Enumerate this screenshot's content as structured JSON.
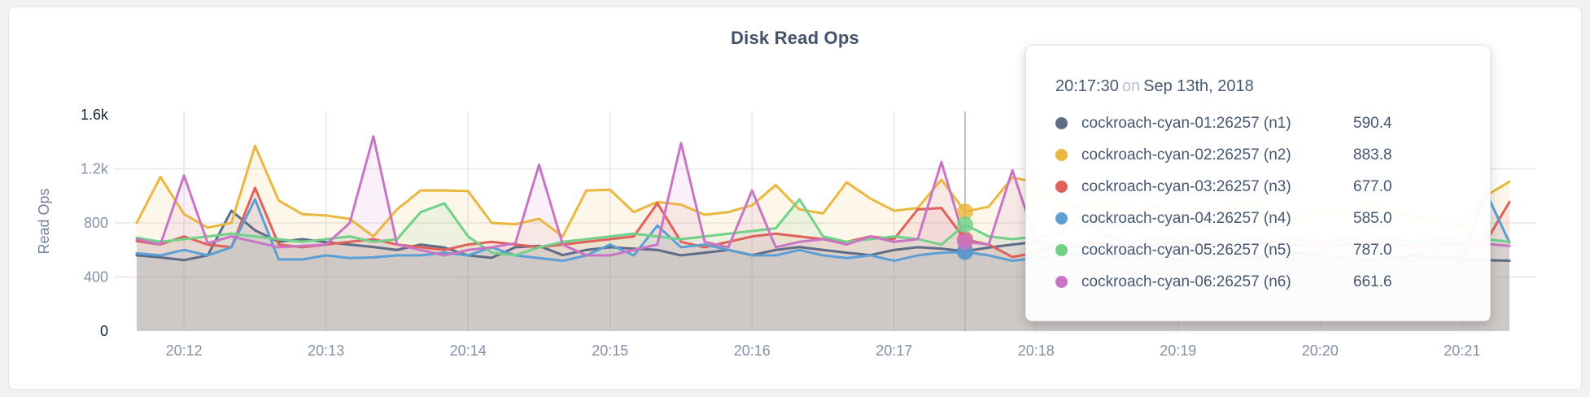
{
  "window": {
    "background_color": "#f1f1f1",
    "card_background": "#ffffff"
  },
  "chart_data": {
    "type": "area",
    "title": "Disk Read Ops",
    "ylabel": "Read Ops",
    "xlabel": "",
    "x_start": "20:11:40",
    "x_step_seconds": 10,
    "ylim": [
      0,
      1600
    ],
    "grid": true,
    "legend_position": "tooltip-only",
    "y_ticks": [
      {
        "value": 0,
        "label": "0",
        "emphasis": true
      },
      {
        "value": 400,
        "label": "400",
        "emphasis": false
      },
      {
        "value": 800,
        "label": "800",
        "emphasis": false
      },
      {
        "value": 1200,
        "label": "1.2k",
        "emphasis": false
      },
      {
        "value": 1600,
        "label": "1.6k",
        "emphasis": true
      }
    ],
    "x_ticks": [
      {
        "index": 2,
        "label": "20:12"
      },
      {
        "index": 8,
        "label": "20:13"
      },
      {
        "index": 14,
        "label": "20:14"
      },
      {
        "index": 20,
        "label": "20:15"
      },
      {
        "index": 26,
        "label": "20:16"
      },
      {
        "index": 32,
        "label": "20:17"
      },
      {
        "index": 38,
        "label": "20:18"
      },
      {
        "index": 44,
        "label": "20:19"
      },
      {
        "index": 50,
        "label": "20:20"
      },
      {
        "index": 56,
        "label": "20:21"
      }
    ],
    "hover": {
      "index": 35,
      "time": "20:17:30"
    },
    "series": [
      {
        "name": "cockroach-cyan-01:26257 (n1)",
        "color": "#5f6c87",
        "values": [
          560,
          545,
          525,
          560,
          890,
          745,
          660,
          680,
          658,
          640,
          622,
          600,
          640,
          618,
          560,
          542,
          620,
          630,
          562,
          600,
          620,
          610,
          600,
          560,
          580,
          600,
          562,
          600,
          622,
          600,
          580,
          562,
          600,
          620,
          610,
          590.4,
          618,
          640,
          660,
          640,
          620,
          600,
          580,
          562,
          600,
          580,
          560,
          542,
          560,
          580,
          560,
          540,
          522,
          540,
          558,
          540,
          530,
          525,
          520
        ]
      },
      {
        "name": "cockroach-cyan-02:26257 (n2)",
        "color": "#eab73f",
        "values": [
          800,
          1140,
          865,
          765,
          800,
          1370,
          965,
          865,
          855,
          830,
          700,
          900,
          1040,
          1040,
          1035,
          800,
          790,
          830,
          700,
          1040,
          1045,
          880,
          955,
          935,
          860,
          880,
          930,
          1080,
          900,
          870,
          1100,
          980,
          890,
          910,
          1120,
          883.8,
          920,
          1135,
          1100,
          950,
          900,
          980,
          870,
          920,
          870,
          830,
          900,
          950,
          870,
          830,
          900,
          860,
          930,
          880,
          850,
          820,
          780,
          1000,
          1105
        ]
      },
      {
        "name": "cockroach-cyan-03:26257 (n3)",
        "color": "#e06159",
        "values": [
          665,
          640,
          700,
          640,
          620,
          1060,
          640,
          620,
          640,
          660,
          680,
          640,
          620,
          600,
          640,
          660,
          640,
          620,
          640,
          660,
          680,
          700,
          945,
          660,
          620,
          660,
          700,
          720,
          700,
          680,
          660,
          700,
          680,
          900,
          910,
          677,
          640,
          548,
          580,
          640,
          660,
          640,
          620,
          640,
          660,
          640,
          620,
          640,
          660,
          640,
          620,
          640,
          660,
          640,
          620,
          640,
          660,
          660,
          955
        ]
      },
      {
        "name": "cockroach-cyan-04:26257 (n4)",
        "color": "#5c9fd4",
        "values": [
          575,
          560,
          600,
          560,
          620,
          975,
          530,
          530,
          560,
          540,
          545,
          560,
          560,
          580,
          560,
          620,
          560,
          540,
          520,
          560,
          640,
          560,
          780,
          620,
          640,
          600,
          560,
          560,
          600,
          560,
          540,
          560,
          520,
          560,
          580,
          585,
          560,
          520,
          540,
          560,
          580,
          560,
          540,
          560,
          520,
          540,
          560,
          540,
          520,
          540,
          560,
          540,
          520,
          540,
          520,
          560,
          540,
          1030,
          655
        ]
      },
      {
        "name": "cockroach-cyan-05:26257 (n5)",
        "color": "#70d189",
        "values": [
          690,
          660,
          680,
          700,
          720,
          700,
          680,
          660,
          680,
          700,
          660,
          680,
          880,
          945,
          700,
          580,
          560,
          620,
          660,
          680,
          700,
          720,
          700,
          680,
          700,
          720,
          740,
          760,
          975,
          700,
          660,
          680,
          700,
          680,
          640,
          787,
          700,
          680,
          700,
          720,
          860,
          700,
          660,
          680,
          700,
          680,
          660,
          680,
          700,
          680,
          660,
          680,
          700,
          680,
          660,
          680,
          700,
          680,
          660
        ]
      },
      {
        "name": "cockroach-cyan-06:26257 (n6)",
        "color": "#ca74c4",
        "values": [
          680,
          640,
          1150,
          650,
          700,
          660,
          620,
          630,
          640,
          800,
          1440,
          640,
          600,
          560,
          600,
          620,
          650,
          1230,
          640,
          560,
          560,
          600,
          640,
          1390,
          660,
          620,
          1040,
          620,
          660,
          680,
          640,
          700,
          660,
          680,
          1250,
          661.6,
          640,
          1190,
          660,
          620,
          650,
          700,
          660,
          640,
          620,
          660,
          640,
          680,
          650,
          630,
          660,
          640,
          620,
          650,
          640,
          660,
          640,
          645,
          630
        ]
      }
    ]
  },
  "tooltip": {
    "time": "20:17:30",
    "on_word": "on",
    "date": "Sep 13th, 2018",
    "rows": [
      {
        "label": "cockroach-cyan-01:26257 (n1)",
        "value": "590.4",
        "color": "#5f6c87"
      },
      {
        "label": "cockroach-cyan-02:26257 (n2)",
        "value": "883.8",
        "color": "#eab73f"
      },
      {
        "label": "cockroach-cyan-03:26257 (n3)",
        "value": "677.0",
        "color": "#e06159"
      },
      {
        "label": "cockroach-cyan-04:26257 (n4)",
        "value": "585.0",
        "color": "#5c9fd4"
      },
      {
        "label": "cockroach-cyan-05:26257 (n5)",
        "value": "787.0",
        "color": "#70d189"
      },
      {
        "label": "cockroach-cyan-06:26257 (n6)",
        "value": "661.6",
        "color": "#ca74c4"
      }
    ]
  },
  "style": {
    "grid_color": "#e8e8e8",
    "hover_line_color": "#b3b3b3",
    "axis_tick_color": "#8490a4",
    "axis_maxmin_color": "#16233a",
    "axis_title_color": "#75819b",
    "area_opacity": 0.11
  }
}
